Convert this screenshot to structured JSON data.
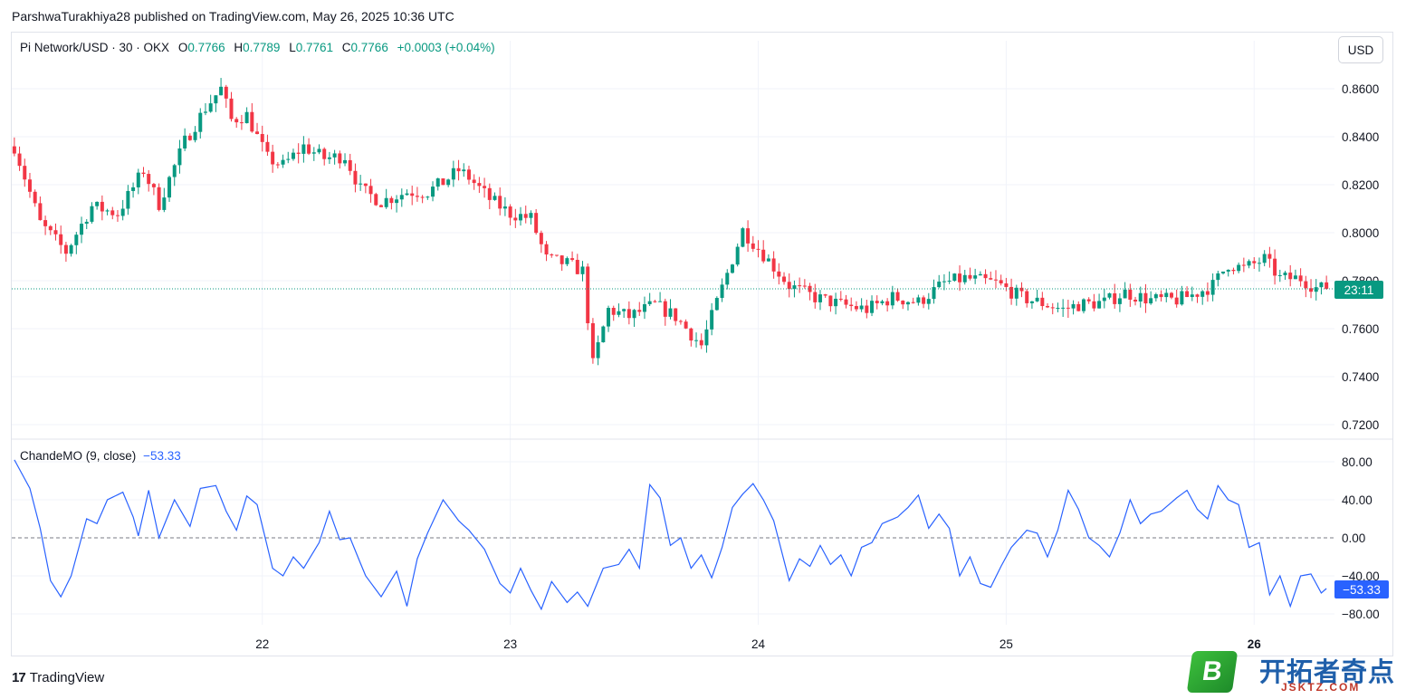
{
  "publisher_line": "ParshwaTurakhiya28 published on TradingView.com, May 26, 2025 10:36 UTC",
  "legend": {
    "symbol": "Pi Network/USD · 30 · OKX",
    "open_label": "O",
    "open": "0.7766",
    "high_label": "H",
    "high": "0.7789",
    "low_label": "L",
    "low": "0.7761",
    "close_label": "C",
    "close": "0.7766",
    "change": "+0.0003 (+0.04%)"
  },
  "currency_button": "USD",
  "price_tag": "23:11",
  "oscillator": {
    "label": "ChandeMO (9, close)",
    "value": "−53.33",
    "tag": "−53.33"
  },
  "brand": "TradingView",
  "watermark": {
    "badge": "B",
    "title": "开拓者奇点",
    "subtitle": "JSKTZ.COM"
  },
  "colors": {
    "up": "#089981",
    "down": "#f23645",
    "osc_line": "#2962ff",
    "grid": "#f0f3fa"
  },
  "chart_data": [
    {
      "type": "candlestick",
      "title": "Pi Network/USD · 30 · OKX",
      "x_ticks": [
        "22",
        "23",
        "24",
        "25",
        "26"
      ],
      "y_ticks": [
        "0.8600",
        "0.8400",
        "0.8200",
        "0.8000",
        "0.7800",
        "0.7600",
        "0.7400",
        "0.7200"
      ],
      "ylim": [
        0.7155,
        0.879
      ],
      "last_price": 0.7766,
      "grid": true,
      "candles_per_day": 48,
      "day_tick_candle_index": [
        48,
        96,
        144,
        192,
        240
      ],
      "close_anchors": [
        [
          0,
          0.836
        ],
        [
          5,
          0.804
        ],
        [
          10,
          0.792
        ],
        [
          15,
          0.811
        ],
        [
          20,
          0.808
        ],
        [
          25,
          0.826
        ],
        [
          28,
          0.812
        ],
        [
          33,
          0.838
        ],
        [
          37,
          0.852
        ],
        [
          40,
          0.86
        ],
        [
          42,
          0.847
        ],
        [
          45,
          0.849
        ],
        [
          49,
          0.831
        ],
        [
          52,
          0.828
        ],
        [
          56,
          0.836
        ],
        [
          60,
          0.831
        ],
        [
          64,
          0.832
        ],
        [
          67,
          0.818
        ],
        [
          71,
          0.813
        ],
        [
          76,
          0.817
        ],
        [
          80,
          0.817
        ],
        [
          83,
          0.821
        ],
        [
          86,
          0.826
        ],
        [
          88,
          0.823
        ],
        [
          92,
          0.814
        ],
        [
          96,
          0.808
        ],
        [
          100,
          0.806
        ],
        [
          103,
          0.789
        ],
        [
          107,
          0.787
        ],
        [
          110,
          0.784
        ],
        [
          112,
          0.745
        ],
        [
          115,
          0.768
        ],
        [
          119,
          0.765
        ],
        [
          124,
          0.77
        ],
        [
          128,
          0.765
        ],
        [
          133,
          0.753
        ],
        [
          137,
          0.777
        ],
        [
          141,
          0.801
        ],
        [
          145,
          0.791
        ],
        [
          150,
          0.778
        ],
        [
          155,
          0.773
        ],
        [
          160,
          0.77
        ],
        [
          165,
          0.768
        ],
        [
          170,
          0.773
        ],
        [
          175,
          0.771
        ],
        [
          180,
          0.779
        ],
        [
          184,
          0.781
        ],
        [
          190,
          0.779
        ],
        [
          195,
          0.773
        ],
        [
          200,
          0.77
        ],
        [
          203,
          0.768
        ],
        [
          206,
          0.77
        ],
        [
          211,
          0.771
        ],
        [
          215,
          0.775
        ],
        [
          220,
          0.772
        ],
        [
          225,
          0.772
        ],
        [
          228,
          0.774
        ],
        [
          232,
          0.778
        ],
        [
          235,
          0.787
        ],
        [
          238,
          0.785
        ],
        [
          242,
          0.789
        ],
        [
          245,
          0.781
        ],
        [
          249,
          0.781
        ],
        [
          252,
          0.777
        ],
        [
          254,
          0.7766
        ]
      ],
      "oscillator": {
        "name": "ChandeMO (9, close)",
        "y_ticks": [
          "80.00",
          "40.00",
          "0.00",
          "−40.00",
          "−80.00"
        ],
        "ylim": [
          -90,
          95
        ],
        "last_value": -53.33,
        "zero_line": 0,
        "anchors": [
          [
            0,
            82
          ],
          [
            3,
            52
          ],
          [
            5,
            10
          ],
          [
            7,
            -45
          ],
          [
            9,
            -62
          ],
          [
            11,
            -40
          ],
          [
            14,
            20
          ],
          [
            16,
            15
          ],
          [
            18,
            40
          ],
          [
            21,
            48
          ],
          [
            23,
            22
          ],
          [
            24,
            2
          ],
          [
            26,
            50
          ],
          [
            28,
            0
          ],
          [
            31,
            40
          ],
          [
            34,
            12
          ],
          [
            36,
            52
          ],
          [
            39,
            55
          ],
          [
            41,
            28
          ],
          [
            43,
            8
          ],
          [
            45,
            44
          ],
          [
            47,
            35
          ],
          [
            50,
            -32
          ],
          [
            52,
            -40
          ],
          [
            54,
            -20
          ],
          [
            56,
            -32
          ],
          [
            59,
            -5
          ],
          [
            61,
            28
          ],
          [
            63,
            -2
          ],
          [
            65,
            0
          ],
          [
            68,
            -40
          ],
          [
            71,
            -62
          ],
          [
            74,
            -35
          ],
          [
            76,
            -72
          ],
          [
            78,
            -22
          ],
          [
            80,
            5
          ],
          [
            83,
            40
          ],
          [
            86,
            18
          ],
          [
            88,
            8
          ],
          [
            91,
            -12
          ],
          [
            94,
            -48
          ],
          [
            96,
            -58
          ],
          [
            98,
            -32
          ],
          [
            100,
            -55
          ],
          [
            102,
            -75
          ],
          [
            104,
            -46
          ],
          [
            107,
            -68
          ],
          [
            109,
            -57
          ],
          [
            111,
            -72
          ],
          [
            114,
            -32
          ],
          [
            117,
            -28
          ],
          [
            119,
            -12
          ],
          [
            121,
            -32
          ],
          [
            123,
            56
          ],
          [
            125,
            42
          ],
          [
            127,
            -8
          ],
          [
            129,
            0
          ],
          [
            131,
            -32
          ],
          [
            133,
            -18
          ],
          [
            135,
            -42
          ],
          [
            137,
            -10
          ],
          [
            139,
            32
          ],
          [
            141,
            46
          ],
          [
            143,
            57
          ],
          [
            145,
            40
          ],
          [
            147,
            18
          ],
          [
            150,
            -45
          ],
          [
            152,
            -22
          ],
          [
            154,
            -30
          ],
          [
            156,
            -8
          ],
          [
            158,
            -28
          ],
          [
            160,
            -18
          ],
          [
            162,
            -40
          ],
          [
            164,
            -10
          ],
          [
            166,
            -5
          ],
          [
            168,
            15
          ],
          [
            171,
            22
          ],
          [
            173,
            32
          ],
          [
            175,
            45
          ],
          [
            177,
            10
          ],
          [
            179,
            25
          ],
          [
            181,
            10
          ],
          [
            183,
            -40
          ],
          [
            185,
            -20
          ],
          [
            187,
            -48
          ],
          [
            189,
            -52
          ],
          [
            191,
            -30
          ],
          [
            193,
            -10
          ],
          [
            196,
            8
          ],
          [
            198,
            5
          ],
          [
            200,
            -20
          ],
          [
            202,
            8
          ],
          [
            204,
            50
          ],
          [
            206,
            30
          ],
          [
            208,
            0
          ],
          [
            210,
            -8
          ],
          [
            212,
            -20
          ],
          [
            214,
            5
          ],
          [
            216,
            40
          ],
          [
            218,
            15
          ],
          [
            220,
            25
          ],
          [
            222,
            28
          ],
          [
            225,
            42
          ],
          [
            227,
            50
          ],
          [
            229,
            30
          ],
          [
            231,
            20
          ],
          [
            233,
            55
          ],
          [
            235,
            40
          ],
          [
            237,
            35
          ],
          [
            239,
            -10
          ],
          [
            241,
            -5
          ],
          [
            243,
            -60
          ],
          [
            245,
            -40
          ],
          [
            247,
            -72
          ],
          [
            249,
            -40
          ],
          [
            251,
            -38
          ],
          [
            253,
            -58
          ],
          [
            254,
            -53.33
          ]
        ]
      }
    }
  ]
}
